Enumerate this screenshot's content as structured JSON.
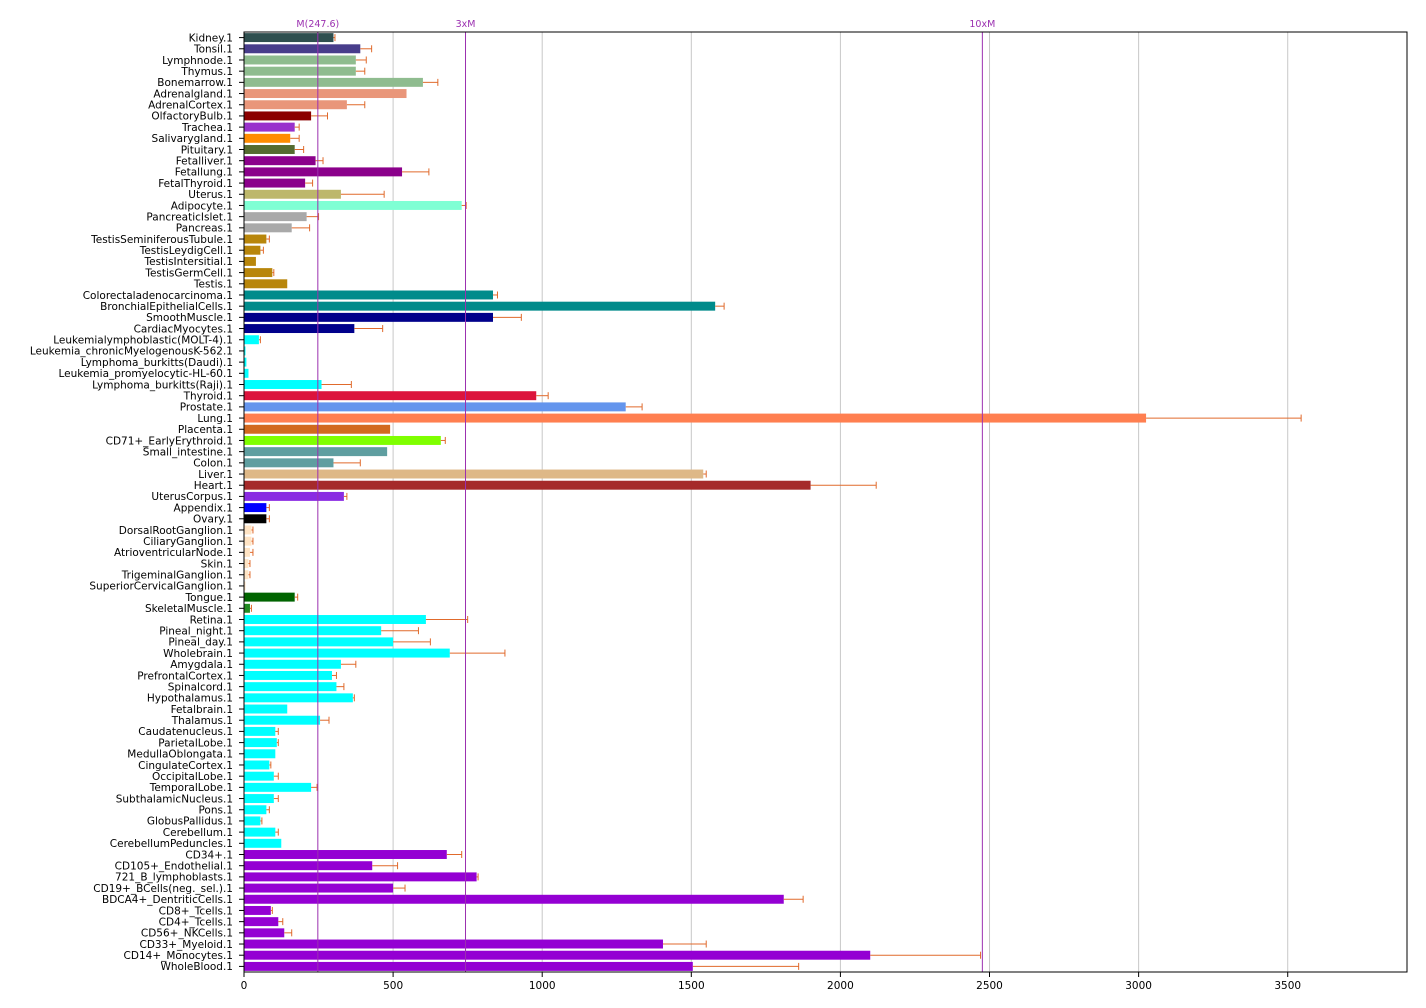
{
  "chart_data": {
    "type": "bar",
    "orientation": "horizontal",
    "xlim": [
      0,
      3900
    ],
    "x_ticks": [
      0,
      500,
      1000,
      1500,
      2000,
      2500,
      3000,
      3500
    ],
    "grid": "vertical",
    "error_bar_color": "#e06a2c",
    "reference_lines": [
      {
        "label": "M(247.6)",
        "value": 247.6,
        "color": "#9b30b0"
      },
      {
        "label": "3xM",
        "value": 742.8,
        "color": "#9b30b0"
      },
      {
        "label": "10xM",
        "value": 2476,
        "color": "#9b30b0"
      }
    ],
    "bars": [
      {
        "label": "Kidney.1",
        "value": 300,
        "error": 5,
        "color": "#2f4f4f"
      },
      {
        "label": "Tonsil.1",
        "value": 390,
        "error": 38,
        "color": "#483d8b"
      },
      {
        "label": "Lymphnode.1",
        "value": 375,
        "error": 35,
        "color": "#8fbc8f"
      },
      {
        "label": "Thymus.1",
        "value": 375,
        "error": 30,
        "color": "#8fbc8f"
      },
      {
        "label": "Bonemarrow.1",
        "value": 600,
        "error": 50,
        "color": "#8fbc8f"
      },
      {
        "label": "Adrenalgland.1",
        "value": 545,
        "error": 0,
        "color": "#e9967a"
      },
      {
        "label": "AdrenalCortex.1",
        "value": 345,
        "error": 60,
        "color": "#e9967a"
      },
      {
        "label": "OlfactoryBulb.1",
        "value": 225,
        "error": 55,
        "color": "#8b0000"
      },
      {
        "label": "Trachea.1",
        "value": 170,
        "error": 15,
        "color": "#9932cc"
      },
      {
        "label": "Salivarygland.1",
        "value": 155,
        "error": 30,
        "color": "#ff8c00"
      },
      {
        "label": "Pituitary.1",
        "value": 170,
        "error": 30,
        "color": "#556b2f"
      },
      {
        "label": "Fetalliver.1",
        "value": 240,
        "error": 25,
        "color": "#8b008b"
      },
      {
        "label": "Fetallung.1",
        "value": 530,
        "error": 90,
        "color": "#8b008b"
      },
      {
        "label": "FetalThyroid.1",
        "value": 205,
        "error": 25,
        "color": "#8b008b"
      },
      {
        "label": "Uterus.1",
        "value": 325,
        "error": 145,
        "color": "#bdb76b"
      },
      {
        "label": "Adipocyte.1",
        "value": 730,
        "error": 15,
        "color": "#7fffd4"
      },
      {
        "label": "PancreaticIslet.1",
        "value": 210,
        "error": 40,
        "color": "#a9a9a9"
      },
      {
        "label": "Pancreas.1",
        "value": 160,
        "error": 60,
        "color": "#a9a9a9"
      },
      {
        "label": "TestisSeminiferousTubule.1",
        "value": 75,
        "error": 10,
        "color": "#b8860b"
      },
      {
        "label": "TestisLeydigCell.1",
        "value": 55,
        "error": 10,
        "color": "#b8860b"
      },
      {
        "label": "TestisIntersitial.1",
        "value": 40,
        "error": 0,
        "color": "#b8860b"
      },
      {
        "label": "TestisGermCell.1",
        "value": 95,
        "error": 5,
        "color": "#b8860b"
      },
      {
        "label": "Testis.1",
        "value": 145,
        "error": 0,
        "color": "#b8860b"
      },
      {
        "label": "Colorectaladenocarcinoma.1",
        "value": 835,
        "error": 15,
        "color": "#008b8b"
      },
      {
        "label": "BronchialEpithelialCells.1",
        "value": 1580,
        "error": 30,
        "color": "#008b8b"
      },
      {
        "label": "SmoothMuscle.1",
        "value": 835,
        "error": 95,
        "color": "#00008b"
      },
      {
        "label": "CardiacMyocytes.1",
        "value": 370,
        "error": 95,
        "color": "#00008b"
      },
      {
        "label": "Leukemialymphoblastic(MOLT-4).1",
        "value": 50,
        "error": 5,
        "color": "#00ffff"
      },
      {
        "label": "Leukemia_chronicMyelogenousK-562.1",
        "value": 5,
        "error": 0,
        "color": "#00ffff"
      },
      {
        "label": "Lymphoma_burkitts(Daudi).1",
        "value": 8,
        "error": 0,
        "color": "#00ffff"
      },
      {
        "label": "Leukemia_promyelocytic-HL-60.1",
        "value": 15,
        "error": 0,
        "color": "#00ffff"
      },
      {
        "label": "Lymphoma_burkitts(Raji).1",
        "value": 260,
        "error": 100,
        "color": "#00ffff"
      },
      {
        "label": "Thyroid.1",
        "value": 980,
        "error": 40,
        "color": "#dc143c"
      },
      {
        "label": "Prostate.1",
        "value": 1280,
        "error": 55,
        "color": "#6495ed"
      },
      {
        "label": "Lung.1",
        "value": 3025,
        "error": 520,
        "color": "#ff7f50"
      },
      {
        "label": "Placenta.1",
        "value": 490,
        "error": 0,
        "color": "#d2691e"
      },
      {
        "label": "CD71+_EarlyErythroid.1",
        "value": 660,
        "error": 15,
        "color": "#7fff00"
      },
      {
        "label": "Small_intestine.1",
        "value": 480,
        "error": 0,
        "color": "#5f9ea0"
      },
      {
        "label": "Colon.1",
        "value": 300,
        "error": 90,
        "color": "#5f9ea0"
      },
      {
        "label": "Liver.1",
        "value": 1540,
        "error": 10,
        "color": "#deb887"
      },
      {
        "label": "Heart.1",
        "value": 1900,
        "error": 220,
        "color": "#a52a2a"
      },
      {
        "label": "UterusCorpus.1",
        "value": 335,
        "error": 10,
        "color": "#8a2be2"
      },
      {
        "label": "Appendix.1",
        "value": 75,
        "error": 10,
        "color": "#0000ff"
      },
      {
        "label": "Ovary.1",
        "value": 75,
        "error": 10,
        "color": "#000000"
      },
      {
        "label": "DorsalRootGanglion.1",
        "value": 25,
        "error": 5,
        "color": "#ffe4c4"
      },
      {
        "label": "CiliaryGanglion.1",
        "value": 25,
        "error": 5,
        "color": "#ffe4c4"
      },
      {
        "label": "AtrioventricularNode.1",
        "value": 20,
        "error": 10,
        "color": "#ffe4c4"
      },
      {
        "label": "Skin.1",
        "value": 15,
        "error": 5,
        "color": "#ffe4c4"
      },
      {
        "label": "TrigeminalGanglion.1",
        "value": 15,
        "error": 5,
        "color": "#ffe4c4"
      },
      {
        "label": "SuperiorCervicalGanglion.1",
        "value": 5,
        "error": 0,
        "color": "#ffe4c4"
      },
      {
        "label": "Tongue.1",
        "value": 170,
        "error": 10,
        "color": "#006400"
      },
      {
        "label": "SkeletalMuscle.1",
        "value": 20,
        "error": 5,
        "color": "#228b22"
      },
      {
        "label": "Retina.1",
        "value": 610,
        "error": 140,
        "color": "#00ffff"
      },
      {
        "label": "Pineal_night.1",
        "value": 460,
        "error": 125,
        "color": "#00ffff"
      },
      {
        "label": "Pineal_day.1",
        "value": 500,
        "error": 125,
        "color": "#00ffff"
      },
      {
        "label": "Wholebrain.1",
        "value": 690,
        "error": 185,
        "color": "#00ffff"
      },
      {
        "label": "Amygdala.1",
        "value": 325,
        "error": 50,
        "color": "#00ffff"
      },
      {
        "label": "PrefrontalCortex.1",
        "value": 295,
        "error": 15,
        "color": "#00ffff"
      },
      {
        "label": "Spinalcord.1",
        "value": 310,
        "error": 25,
        "color": "#00ffff"
      },
      {
        "label": "Hypothalamus.1",
        "value": 365,
        "error": 5,
        "color": "#00ffff"
      },
      {
        "label": "Fetalbrain.1",
        "value": 145,
        "error": 0,
        "color": "#00ffff"
      },
      {
        "label": "Thalamus.1",
        "value": 255,
        "error": 30,
        "color": "#00ffff"
      },
      {
        "label": "Caudatenucleus.1",
        "value": 105,
        "error": 10,
        "color": "#00ffff"
      },
      {
        "label": "ParietalLobe.1",
        "value": 110,
        "error": 5,
        "color": "#00ffff"
      },
      {
        "label": "MedullaOblongata.1",
        "value": 105,
        "error": 0,
        "color": "#00ffff"
      },
      {
        "label": "CingulateCortex.1",
        "value": 85,
        "error": 5,
        "color": "#00ffff"
      },
      {
        "label": "OccipitalLobe.1",
        "value": 100,
        "error": 15,
        "color": "#00ffff"
      },
      {
        "label": "TemporalLobe.1",
        "value": 225,
        "error": 20,
        "color": "#00ffff"
      },
      {
        "label": "SubthalamicNucleus.1",
        "value": 100,
        "error": 15,
        "color": "#00ffff"
      },
      {
        "label": "Pons.1",
        "value": 75,
        "error": 10,
        "color": "#00ffff"
      },
      {
        "label": "GlobusPallidus.1",
        "value": 55,
        "error": 5,
        "color": "#00ffff"
      },
      {
        "label": "Cerebellum.1",
        "value": 105,
        "error": 10,
        "color": "#00ffff"
      },
      {
        "label": "CerebellumPeduncles.1",
        "value": 125,
        "error": 0,
        "color": "#00ffff"
      },
      {
        "label": "CD34+.1",
        "value": 680,
        "error": 50,
        "color": "#9400d3"
      },
      {
        "label": "CD105+_Endothelial.1",
        "value": 430,
        "error": 85,
        "color": "#9400d3"
      },
      {
        "label": "721_B_lymphoblasts.1",
        "value": 780,
        "error": 5,
        "color": "#9400d3"
      },
      {
        "label": "CD19+_BCells(neg._sel.).1",
        "value": 500,
        "error": 40,
        "color": "#9400d3"
      },
      {
        "label": "BDCA4+_DentriticCells.1",
        "value": 1810,
        "error": 65,
        "color": "#9400d3"
      },
      {
        "label": "CD8+_Tcells.1",
        "value": 90,
        "error": 5,
        "color": "#9400d3"
      },
      {
        "label": "CD4+_Tcells.1",
        "value": 115,
        "error": 15,
        "color": "#9400d3"
      },
      {
        "label": "CD56+_NKCells.1",
        "value": 135,
        "error": 25,
        "color": "#9400d3"
      },
      {
        "label": "CD33+_Myeloid.1",
        "value": 1405,
        "error": 145,
        "color": "#9400d3"
      },
      {
        "label": "CD14+_Monocytes.1",
        "value": 2100,
        "error": 370,
        "color": "#9400d3"
      },
      {
        "label": "WholeBlood.1",
        "value": 1505,
        "error": 355,
        "color": "#9400d3"
      }
    ]
  }
}
